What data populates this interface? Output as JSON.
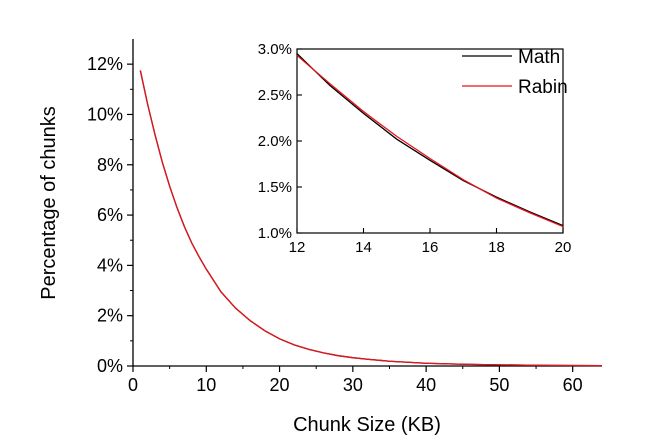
{
  "chart_data": [
    {
      "id": "main",
      "type": "line",
      "xlabel": "Chunk Size (KB)",
      "ylabel": "Percentage of chunks",
      "xlim": [
        0,
        64
      ],
      "ylim": [
        0,
        13
      ],
      "x_ticks": [
        0,
        10,
        20,
        30,
        40,
        50,
        60
      ],
      "x_tick_labels": [
        "0",
        "10",
        "20",
        "30",
        "40",
        "50",
        "60"
      ],
      "y_ticks": [
        0,
        2,
        4,
        6,
        8,
        10,
        12
      ],
      "y_tick_labels": [
        "0%",
        "2%",
        "4%",
        "6%",
        "8%",
        "10%",
        "12%"
      ],
      "grid": false,
      "x": [
        1,
        2,
        3,
        4,
        5,
        6,
        7,
        8,
        9,
        10,
        12,
        14,
        16,
        18,
        20,
        22,
        24,
        26,
        28,
        30,
        32,
        35,
        40,
        45,
        50,
        55,
        60,
        64
      ],
      "series": [
        {
          "name": "Math",
          "color": "#000000",
          "values": [
            11.75,
            10.4,
            9.2,
            8.1,
            7.15,
            6.3,
            5.55,
            4.9,
            4.35,
            3.85,
            2.95,
            2.3,
            1.8,
            1.4,
            1.08,
            0.84,
            0.66,
            0.52,
            0.41,
            0.33,
            0.27,
            0.19,
            0.11,
            0.07,
            0.045,
            0.03,
            0.02,
            0.015
          ]
        },
        {
          "name": "Rabin",
          "color": "#e8141c",
          "values": [
            11.75,
            10.4,
            9.2,
            8.1,
            7.15,
            6.3,
            5.55,
            4.9,
            4.35,
            3.85,
            2.95,
            2.3,
            1.8,
            1.4,
            1.08,
            0.84,
            0.66,
            0.52,
            0.41,
            0.33,
            0.27,
            0.19,
            0.11,
            0.07,
            0.045,
            0.03,
            0.02,
            0.015
          ]
        }
      ]
    },
    {
      "id": "inset",
      "type": "line",
      "xlim": [
        12,
        20
      ],
      "ylim": [
        1.0,
        3.0
      ],
      "x_ticks": [
        12,
        14,
        16,
        18,
        20
      ],
      "x_tick_labels": [
        "12",
        "14",
        "16",
        "18",
        "20"
      ],
      "y_ticks": [
        1.0,
        1.5,
        2.0,
        2.5,
        3.0
      ],
      "y_tick_labels": [
        "1.0%",
        "1.5%",
        "2.0%",
        "2.5%",
        "3.0%"
      ],
      "legend_position": "top-right",
      "grid": false,
      "x": [
        12,
        13,
        14,
        15,
        16,
        17,
        18,
        19,
        20
      ],
      "series": [
        {
          "name": "Math",
          "color": "#000000",
          "values": [
            2.95,
            2.6,
            2.3,
            2.02,
            1.79,
            1.57,
            1.39,
            1.23,
            1.08
          ]
        },
        {
          "name": "Rabin",
          "color": "#e8141c",
          "values": [
            2.93,
            2.62,
            2.32,
            2.05,
            1.81,
            1.58,
            1.38,
            1.22,
            1.07
          ]
        }
      ]
    }
  ]
}
